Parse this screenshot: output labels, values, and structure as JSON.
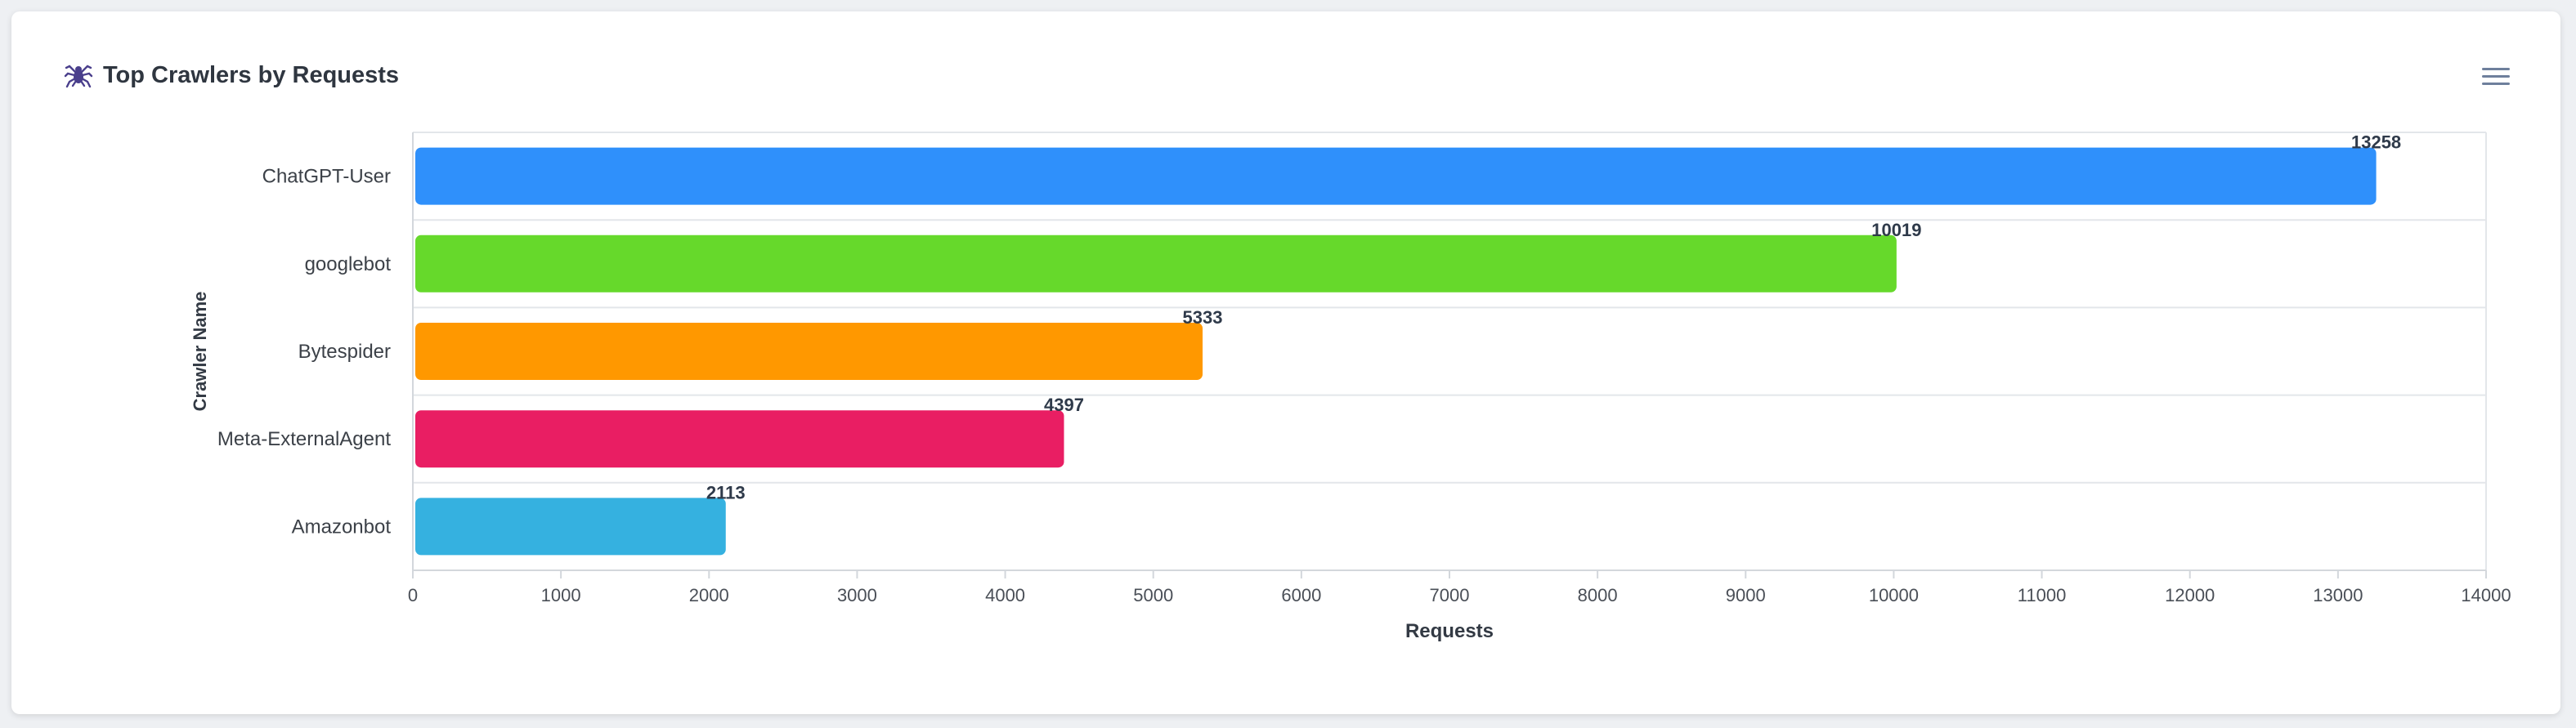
{
  "header": {
    "title": "Top Crawlers by Requests",
    "icon": "spider-icon",
    "menu_icon": "hamburger-menu-icon"
  },
  "chart_data": {
    "type": "bar",
    "orientation": "horizontal",
    "categories": [
      "ChatGPT-User",
      "googlebot",
      "Bytespider",
      "Meta-ExternalAgent",
      "Amazonbot"
    ],
    "values": [
      13258,
      10019,
      5333,
      4397,
      2113
    ],
    "colors": [
      "#2f90fb",
      "#66d92b",
      "#ff9800",
      "#e91e63",
      "#35b1e0"
    ],
    "xlabel": "Requests",
    "ylabel": "Crawler Name",
    "xlim": [
      0,
      14000
    ],
    "xticks": [
      0,
      1000,
      2000,
      3000,
      4000,
      5000,
      6000,
      7000,
      8000,
      9000,
      10000,
      11000,
      12000,
      13000,
      14000
    ],
    "data_labels": true,
    "grid": "horizontal-category-lines"
  }
}
